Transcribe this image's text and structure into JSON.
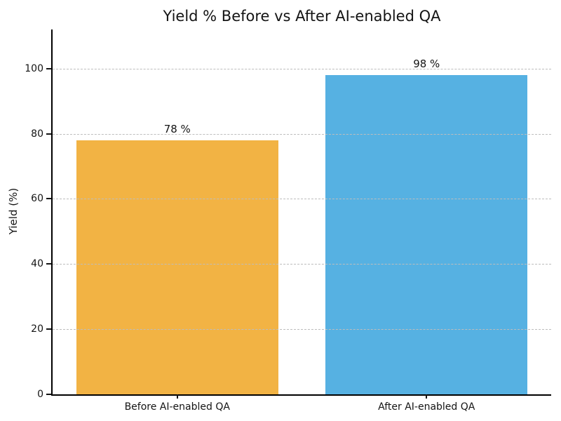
{
  "chart_data": {
    "type": "bar",
    "title": "Yield % Before vs After AI-enabled QA",
    "categories": [
      "Before AI-enabled QA",
      "After AI-enabled QA"
    ],
    "values": [
      78,
      98
    ],
    "bar_labels": [
      "78 %",
      "98 %"
    ],
    "bar_colors": [
      "#F2B344",
      "#56B1E2"
    ],
    "ylabel": "Yield (%)",
    "xlabel": "",
    "yticks": [
      0,
      20,
      40,
      60,
      80,
      100
    ],
    "ylim": [
      0,
      112
    ],
    "grid": {
      "axis": "y",
      "style": "dashed",
      "color": "#bdbdbd"
    },
    "legend_position": "none",
    "background_color": "#ffffff",
    "text_color": "#141414",
    "spine_color": "#000000"
  }
}
